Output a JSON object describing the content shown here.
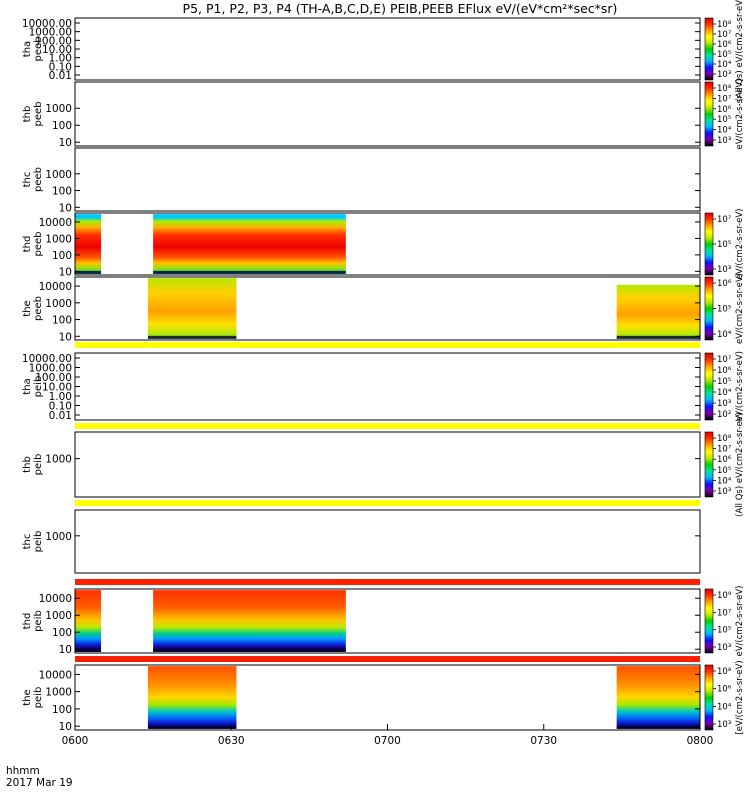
{
  "chart_data": {
    "type": "heatmap",
    "title": "P5, P1, P2, P3, P4 (TH-A,B,C,D,E) PEIB,PEEB EFlux eV/(eV*cm²*sec*sr)",
    "x_tick_labels": [
      "0600",
      "0630",
      "0700",
      "0730",
      "0800"
    ],
    "x_range": [
      "06:00",
      "08:00"
    ],
    "x_label_line1": "hhmm",
    "x_label_line2": "2017 Mar 19",
    "colorbar_colors": [
      "#000000",
      "#7a00a8",
      "#1010ff",
      "#00b4ff",
      "#00e0a0",
      "#00d000",
      "#c8e600",
      "#ffff00",
      "#ffa000",
      "#ff3000",
      "#dd0000"
    ],
    "panels": [
      {
        "sc": "tha",
        "inst": "peeb",
        "y_ticks": [
          "10000.00",
          "1000.00",
          "100.00",
          "10.00",
          "1.00",
          "0.10",
          "0.01"
        ],
        "cbar_ticks": [
          "10⁸",
          "10⁷",
          "10⁶",
          "10⁵",
          "10⁴",
          "10³"
        ],
        "cbar_label": "(All Qs) eV/(cm2-s-sr-eV)",
        "data_blocks": []
      },
      {
        "sc": "thb",
        "inst": "peeb",
        "y_ticks": [
          "1000",
          "100",
          "10"
        ],
        "cbar_ticks": [
          "10⁸",
          "10⁷",
          "10⁶",
          "10⁵",
          "10⁴",
          "10³"
        ],
        "cbar_label": "eV/(cm2-s-sr-eV)",
        "data_blocks": []
      },
      {
        "sc": "thc",
        "inst": "peeb",
        "y_ticks": [
          "1000",
          "100",
          "10"
        ],
        "cbar_ticks": [],
        "cbar_label": "",
        "data_blocks": []
      },
      {
        "sc": "thd",
        "inst": "peeb",
        "y_ticks": [
          "10000",
          "1000",
          "100",
          "10"
        ],
        "cbar_ticks": [
          "10⁷",
          "10⁵",
          "10³"
        ],
        "cbar_label": "eV/(cm2-s-sr-eV)",
        "data_blocks": [
          {
            "start": "06:00",
            "end": "06:05",
            "emin": 7,
            "emax": 30000,
            "peak_energy": 500,
            "kind": "peeb_d"
          },
          {
            "start": "06:15",
            "end": "06:52",
            "emin": 7,
            "emax": 30000,
            "peak_energy": 400,
            "kind": "peeb_d"
          }
        ]
      },
      {
        "sc": "the",
        "inst": "peeb",
        "y_ticks": [
          "10000",
          "1000",
          "100",
          "10"
        ],
        "cbar_ticks": [
          "10⁶",
          "10⁵",
          "10⁴"
        ],
        "cbar_label": "eV/(cm2-s-sr-eV)",
        "data_blocks": [
          {
            "start": "06:14",
            "end": "06:31",
            "emin": 7,
            "emax": 30000,
            "peak_energy": 60,
            "kind": "peeb_e"
          },
          {
            "start": "07:44",
            "end": "08:00",
            "emin": 7,
            "emax": 12000,
            "peak_energy": 60,
            "kind": "peeb_e"
          }
        ]
      },
      {
        "sc": "tha",
        "inst": "peib",
        "y_ticks": [
          "10000.00",
          "1000.00",
          "100.00",
          "10.00",
          "1.00",
          "0.10",
          "0.01"
        ],
        "cbar_ticks": [
          "10⁷",
          "10⁶",
          "10⁵",
          "10⁴",
          "10³",
          "10²"
        ],
        "cbar_label": "eV/(cm2-s-sr-eV)",
        "data_blocks": []
      },
      {
        "sc": "thb",
        "inst": "peib",
        "y_ticks": [
          "1000"
        ],
        "cbar_ticks": [
          "10⁸",
          "10⁷",
          "10⁶",
          "10⁵",
          "10⁴",
          "10³"
        ],
        "cbar_label": "(All Qs) eV/(cm2-s-sr-eV)",
        "data_blocks": []
      },
      {
        "sc": "thc",
        "inst": "peib",
        "y_ticks": [
          "1000"
        ],
        "cbar_ticks": [],
        "cbar_label": "",
        "data_blocks": []
      },
      {
        "sc": "thd",
        "inst": "peib",
        "y_ticks": [
          "10000",
          "1000",
          "100",
          "10"
        ],
        "cbar_ticks": [
          "10⁹",
          "10⁷",
          "10⁵",
          "10³"
        ],
        "cbar_label": "eV/(cm2-s-sr-eV)",
        "data_blocks": [
          {
            "start": "06:00",
            "end": "06:05",
            "emin": 7,
            "emax": 30000,
            "peak_energy": 15000,
            "kind": "peib_d"
          },
          {
            "start": "06:15",
            "end": "06:52",
            "emin": 7,
            "emax": 30000,
            "peak_energy": 15000,
            "kind": "peib_d"
          }
        ]
      },
      {
        "sc": "the",
        "inst": "peib",
        "y_ticks": [
          "10000",
          "1000",
          "100",
          "10"
        ],
        "cbar_ticks": [
          "10⁸",
          "10⁶",
          "10⁴",
          "10³"
        ],
        "cbar_label": "[eV/(cm2-s-sr-eV)",
        "data_blocks": [
          {
            "start": "06:14",
            "end": "06:31",
            "emin": 7,
            "emax": 30000,
            "peak_energy": 15000,
            "kind": "peib_e"
          },
          {
            "start": "07:44",
            "end": "08:00",
            "emin": 7,
            "emax": 30000,
            "peak_energy": 15000,
            "kind": "peib_e"
          }
        ]
      }
    ],
    "separator_bands": [
      {
        "after_panel": 4,
        "color": "#ffff00"
      },
      {
        "after_panel": 5,
        "color": "#ffff00"
      },
      {
        "after_panel": 6,
        "color": "#ffff00"
      },
      {
        "after_panel": 7,
        "color": "#ff2000"
      },
      {
        "after_panel": 8,
        "color": "#ff2000"
      }
    ]
  }
}
